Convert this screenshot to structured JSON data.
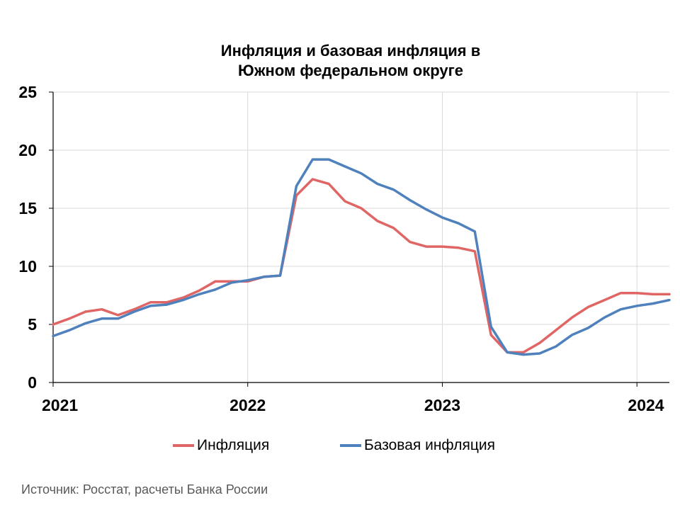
{
  "chart_data": {
    "type": "line",
    "title_lines": [
      "Инфляция и базовая инфляция в",
      "Южном федеральном округе"
    ],
    "source": "Источник: Росстат, расчеты Банка России",
    "xlabel": "",
    "ylabel": "",
    "ylim": [
      0,
      25
    ],
    "yticks": [
      0,
      5,
      10,
      15,
      20,
      25
    ],
    "xlim": [
      "2021-01",
      "2024-03"
    ],
    "xticks": [
      "2021",
      "2022",
      "2023",
      "2024"
    ],
    "grid": true,
    "legend_position": "bottom",
    "colors": {
      "Инфляция": "#E06666",
      "Базовая инфляция": "#4F81BD"
    },
    "x": [
      "2021-01",
      "2021-02",
      "2021-03",
      "2021-04",
      "2021-05",
      "2021-06",
      "2021-07",
      "2021-08",
      "2021-09",
      "2021-10",
      "2021-11",
      "2021-12",
      "2022-01",
      "2022-02",
      "2022-03",
      "2022-04",
      "2022-05",
      "2022-06",
      "2022-07",
      "2022-08",
      "2022-09",
      "2022-10",
      "2022-11",
      "2022-12",
      "2023-01",
      "2023-02",
      "2023-03",
      "2023-04",
      "2023-05",
      "2023-06",
      "2023-07",
      "2023-08",
      "2023-09",
      "2023-10",
      "2023-11",
      "2023-12",
      "2024-01",
      "2024-02",
      "2024-03"
    ],
    "series": [
      {
        "name": "Инфляция",
        "values": [
          5.0,
          5.5,
          6.1,
          6.3,
          5.8,
          6.3,
          6.9,
          6.9,
          7.3,
          7.9,
          8.7,
          8.7,
          8.7,
          9.1,
          9.2,
          16.1,
          17.5,
          17.1,
          15.6,
          15.0,
          13.9,
          13.3,
          12.1,
          11.7,
          11.7,
          11.6,
          11.3,
          4.1,
          2.6,
          2.6,
          3.4,
          4.5,
          5.6,
          6.5,
          7.1,
          7.7,
          7.7,
          7.6,
          7.6
        ]
      },
      {
        "name": "Базовая инфляция",
        "values": [
          4.0,
          4.5,
          5.1,
          5.5,
          5.5,
          6.1,
          6.6,
          6.7,
          7.1,
          7.6,
          8.0,
          8.6,
          8.8,
          9.1,
          9.2,
          16.9,
          19.2,
          19.2,
          18.6,
          18.0,
          17.1,
          16.6,
          15.7,
          14.9,
          14.2,
          13.7,
          13.0,
          4.8,
          2.6,
          2.4,
          2.5,
          3.1,
          4.1,
          4.7,
          5.6,
          6.3,
          6.6,
          6.8,
          7.1
        ]
      }
    ]
  }
}
